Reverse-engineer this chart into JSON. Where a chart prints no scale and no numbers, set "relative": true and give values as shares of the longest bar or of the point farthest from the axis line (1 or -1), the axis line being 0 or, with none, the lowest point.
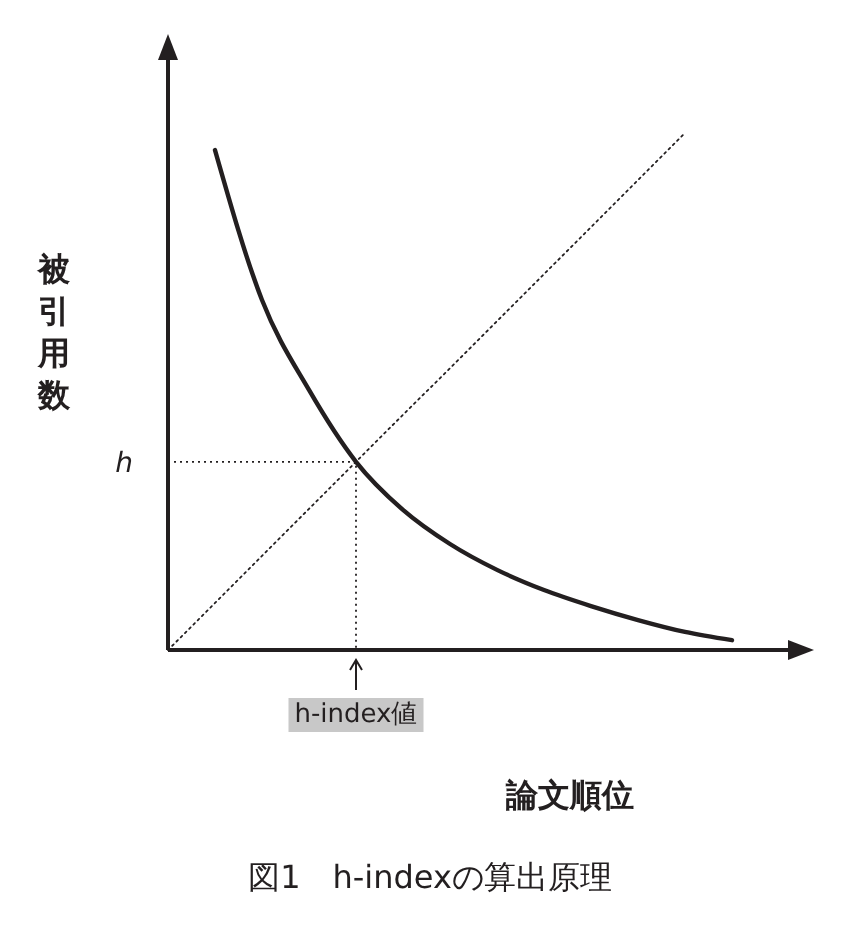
{
  "chart_data": {
    "type": "line",
    "relative": true,
    "title": "図1　h-indexの算出原理",
    "xlabel": "論文順位",
    "ylabel": "被引用数",
    "categories": [
      null,
      null,
      null,
      null,
      null,
      null,
      null,
      null,
      null,
      null,
      null,
      null,
      null
    ],
    "series": [
      {
        "color": "#231f20",
        "line_style": "solid",
        "values": [
          null,
          0.967,
          0.677,
          0.503,
          0.364,
          0.271,
          0.205,
          0.155,
          0.116,
          0.085,
          0.058,
          0.035,
          0.019
        ]
      },
      {
        "color": "#231f20",
        "line_style": "dotted",
        "values": [
          0,
          0.091,
          0.182,
          0.273,
          0.364,
          0.455,
          0.545,
          0.636,
          0.727,
          0.818,
          0.909,
          1,
          null
        ]
      }
    ],
    "ref_lines": [
      {
        "axis": "y",
        "value": 0.364,
        "label": "h",
        "line_style": "dotted"
      }
    ],
    "annotations": [
      "h-index値"
    ]
  }
}
